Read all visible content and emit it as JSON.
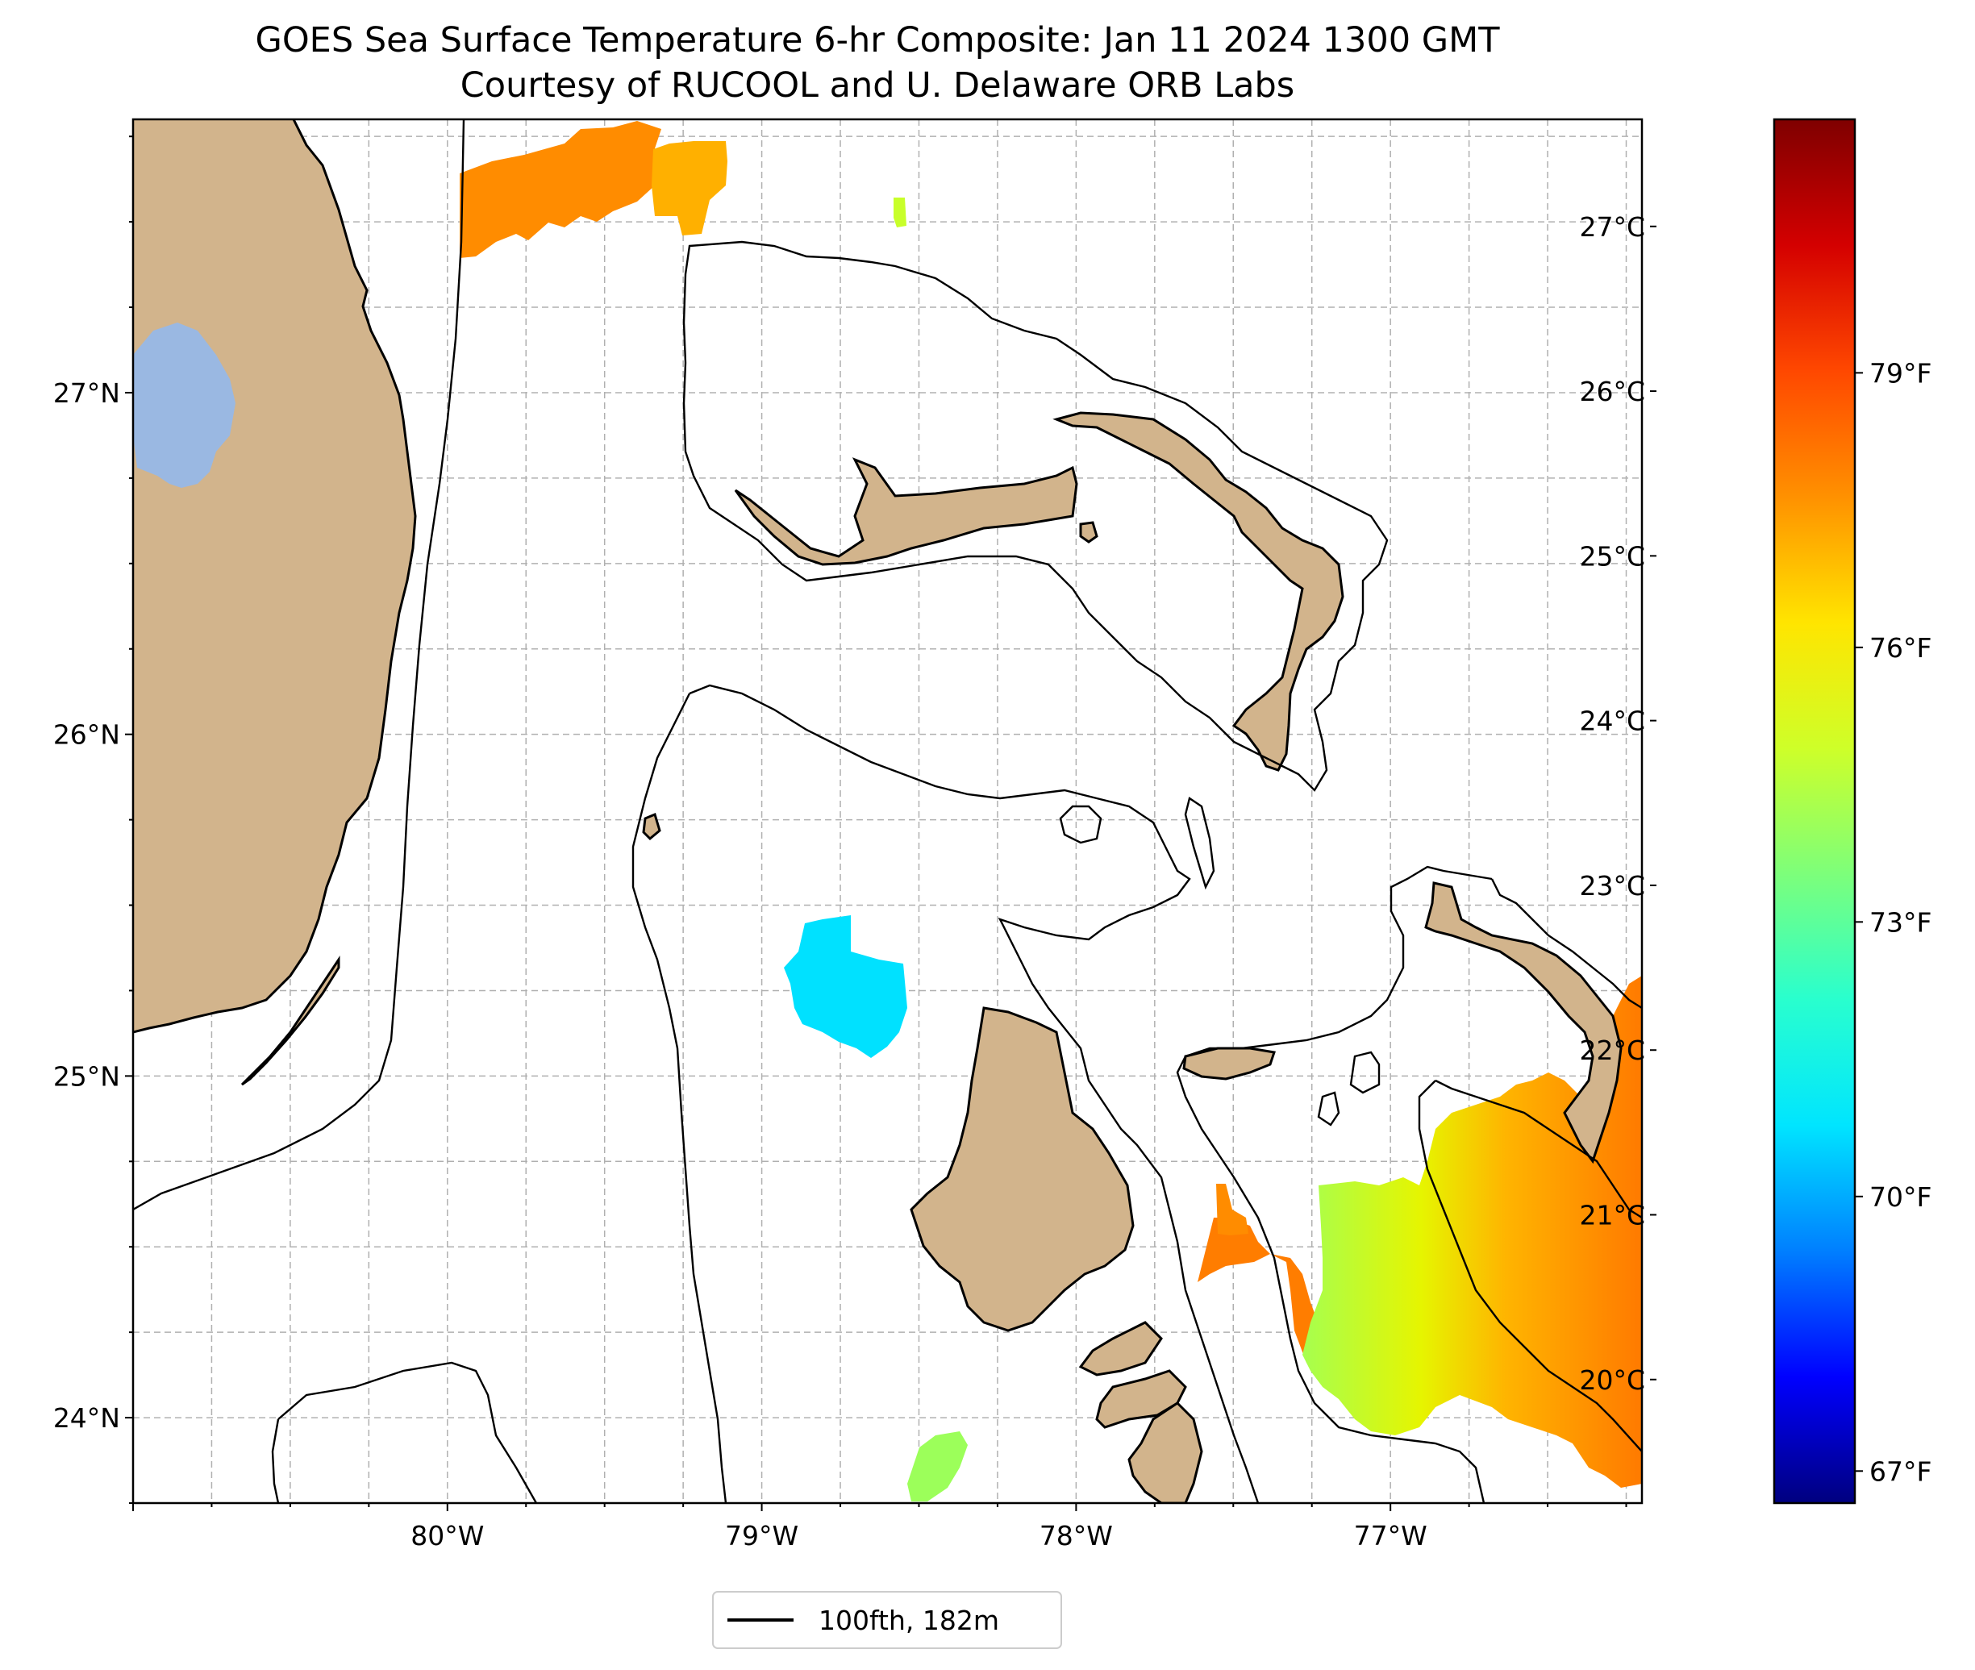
{
  "title": {
    "line1": "GOES Sea Surface Temperature 6-hr Composite: Jan 11 2024 1300 GMT",
    "line2": "Courtesy of RUCOOL and U. Delaware ORB Labs"
  },
  "map": {
    "lon_range": [
      -81.0,
      -76.2
    ],
    "lat_range": [
      23.75,
      27.8
    ],
    "longitude_ticks": [
      {
        "value": -80,
        "label": "80°W"
      },
      {
        "value": -79,
        "label": "79°W"
      },
      {
        "value": -78,
        "label": "78°W"
      },
      {
        "value": -77,
        "label": "77°W"
      }
    ],
    "latitude_ticks": [
      {
        "value": 24,
        "label": "24°N"
      },
      {
        "value": 25,
        "label": "25°N"
      },
      {
        "value": 26,
        "label": "26°N"
      },
      {
        "value": 27,
        "label": "27°N"
      }
    ],
    "gridlines": true,
    "regions": [
      "Florida",
      "Grand Bahama",
      "Great Abaco",
      "Andros",
      "Eleuthera",
      "Lake Okeechobee"
    ]
  },
  "colorbar": {
    "colormap": "jet",
    "celsius_ticks": [
      {
        "value": 20,
        "label": "20°C"
      },
      {
        "value": 21,
        "label": "21°C"
      },
      {
        "value": 22,
        "label": "22°C"
      },
      {
        "value": 23,
        "label": "23°C"
      },
      {
        "value": 24,
        "label": "24°C"
      },
      {
        "value": 25,
        "label": "25°C"
      },
      {
        "value": 26,
        "label": "26°C"
      },
      {
        "value": 27,
        "label": "27°C"
      }
    ],
    "fahrenheit_ticks": [
      {
        "value": 67,
        "label": "67°F"
      },
      {
        "value": 70,
        "label": "70°F"
      },
      {
        "value": 73,
        "label": "73°F"
      },
      {
        "value": 76,
        "label": "76°F"
      },
      {
        "value": 79,
        "label": "79°F"
      }
    ],
    "stops": [
      "#00007f",
      "#0000ff",
      "#007fff",
      "#00e5ff",
      "#29ffce",
      "#7dff7a",
      "#ceff29",
      "#ffe500",
      "#ff9100",
      "#ff4800",
      "#d40000",
      "#7f0000"
    ]
  },
  "sst_patches": [
    {
      "region": "north-central",
      "temp_c": 25.8,
      "color": "#ff8c00"
    },
    {
      "region": "north-east",
      "temp_c": 25.2,
      "color": "#ffb000"
    },
    {
      "region": "small-north",
      "temp_c": 24.5,
      "color": "#c8ff2a"
    },
    {
      "region": "central-cyan",
      "temp_c": 22.0,
      "color": "#00e1ff"
    },
    {
      "region": "south-green",
      "temp_c": 23.8,
      "color": "#9cff5a"
    },
    {
      "region": "south-east-warm",
      "temp_c": 25.9,
      "color": "#ff8000"
    },
    {
      "region": "south-east-green",
      "temp_c": 23.9,
      "color": "#a6ff4f"
    },
    {
      "region": "south-east-yellow",
      "temp_c": 24.6,
      "color": "#e6f500"
    }
  ],
  "legend": {
    "label": "100fth, 182m",
    "line_color": "#000000"
  }
}
